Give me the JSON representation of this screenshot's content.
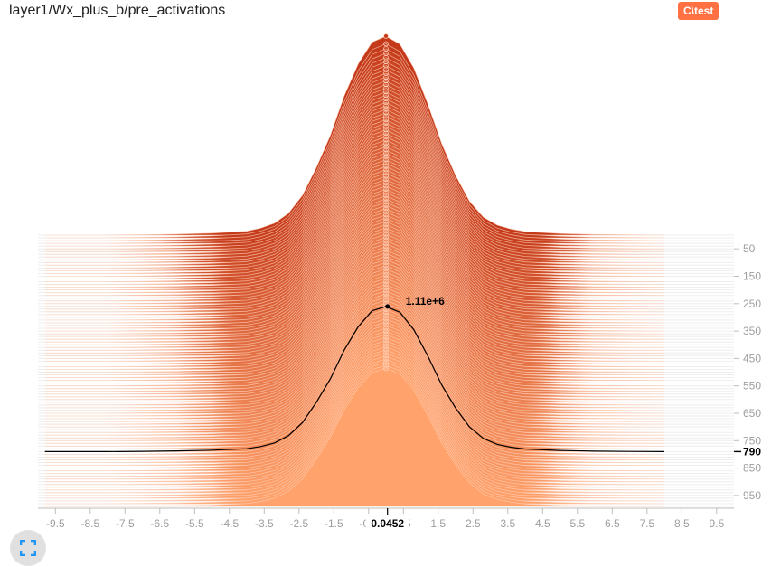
{
  "header": {
    "title": "layer1/Wx_plus_b/pre_activations",
    "run_badge": "C\\test",
    "run_color": "#ff7043"
  },
  "fullscreen_button": {
    "icon": "fullscreen-icon",
    "color": "#2196f3"
  },
  "chart_data": {
    "type": "histogram",
    "mode": "offset",
    "title": "layer1/Wx_plus_b/pre_activations",
    "x_ticks": [
      -9.5,
      -8.5,
      -7.5,
      -6.5,
      -5.5,
      -4.5,
      -3.5,
      -2.5,
      -1.5,
      -0.5,
      0.5,
      1.5,
      2.5,
      3.5,
      4.5,
      5.5,
      6.5,
      7.5,
      8.5,
      9.5
    ],
    "x_tick_labels": [
      "-9.5",
      "-8.5",
      "-7.5",
      "-6.5",
      "-5.5",
      "-4.5",
      "-3.5",
      "-2.5",
      "-1.5",
      "-0.5",
      "0.5",
      "1.5",
      "2.5",
      "3.5",
      "4.5",
      "5.5",
      "6.5",
      "7.5",
      "8.5",
      "9.5"
    ],
    "xlim": [
      -10,
      10
    ],
    "step_ticks": [
      50,
      150,
      250,
      350,
      450,
      550,
      650,
      750,
      850,
      950
    ],
    "step_tick_labels": [
      "50",
      "150",
      "250",
      "350",
      "450",
      "550",
      "650",
      "750",
      "850",
      "950"
    ],
    "step_range": [
      0,
      990
    ],
    "step_interval": 10,
    "distribution": {
      "x": [
        -9.8,
        -9.0,
        -8.0,
        -7.0,
        -6.0,
        -5.0,
        -4.0,
        -3.6,
        -3.2,
        -2.8,
        -2.4,
        -2.0,
        -1.6,
        -1.2,
        -0.8,
        -0.4,
        0.0,
        0.4,
        0.8,
        1.2,
        1.6,
        2.0,
        2.4,
        2.8,
        3.2,
        3.6,
        4.0,
        5.0,
        6.0,
        7.0,
        8.0
      ],
      "relative_counts": [
        0.0,
        0.0,
        0.0,
        0.002,
        0.005,
        0.01,
        0.02,
        0.035,
        0.06,
        0.11,
        0.2,
        0.34,
        0.5,
        0.7,
        0.86,
        0.97,
        1.0,
        0.96,
        0.84,
        0.66,
        0.46,
        0.3,
        0.17,
        0.09,
        0.05,
        0.03,
        0.018,
        0.008,
        0.003,
        0.001,
        0.0
      ],
      "peak_count_first_step": 1600000.0,
      "peak_count_last_step": 1110000.0
    },
    "hover": {
      "step": 790,
      "step_label": "790",
      "x": 0.0452,
      "x_label": "0.0452",
      "count_label": "1.11e+6"
    },
    "colors": {
      "newest": "#ffa26b",
      "oldest": "#c4391a",
      "ridge_stroke": "#ffd0b8",
      "hover_line": "#000000"
    }
  }
}
